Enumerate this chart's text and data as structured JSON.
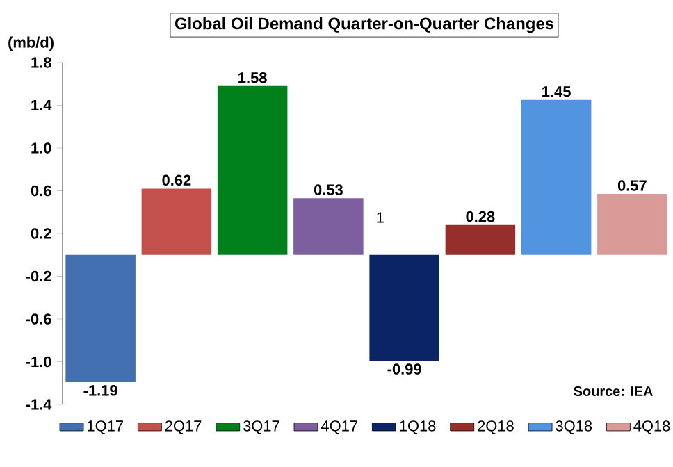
{
  "chart_data": {
    "type": "bar",
    "title": "Global Oil Demand Quarter-on-Quarter Changes",
    "ylabel": "(mb/d)",
    "categories": [
      null,
      null,
      null,
      null,
      null,
      null,
      null,
      null
    ],
    "series": [
      {
        "name": "1Q17",
        "color": "#416fb0",
        "values": [
          -1.19,
          null,
          null,
          null,
          null,
          null,
          null,
          null
        ],
        "value_labels": [
          "-1.19",
          null,
          null,
          null,
          null,
          null,
          null,
          null
        ]
      },
      {
        "name": "2Q17",
        "color": "#c4504c",
        "values": [
          null,
          0.62,
          null,
          null,
          null,
          null,
          null,
          null
        ],
        "value_labels": [
          null,
          "0.62",
          null,
          null,
          null,
          null,
          null,
          null
        ]
      },
      {
        "name": "3Q17",
        "color": "#00801a",
        "values": [
          null,
          null,
          1.58,
          null,
          null,
          null,
          null,
          null
        ],
        "value_labels": [
          null,
          null,
          "1.58",
          null,
          null,
          null,
          null,
          null
        ]
      },
      {
        "name": "4Q17",
        "color": "#7d5fa0",
        "values": [
          null,
          null,
          null,
          0.53,
          null,
          null,
          null,
          null
        ],
        "value_labels": [
          null,
          null,
          null,
          "0.53",
          null,
          null,
          null,
          null
        ]
      },
      {
        "name": "1Q18",
        "color": "#0b2466",
        "values": [
          null,
          null,
          null,
          null,
          -0.99,
          null,
          null,
          null
        ],
        "value_labels": [
          null,
          null,
          null,
          null,
          "-0.99",
          null,
          null,
          null
        ]
      },
      {
        "name": "2Q18",
        "color": "#962f2c",
        "values": [
          null,
          null,
          null,
          null,
          null,
          0.28,
          null,
          null
        ],
        "value_labels": [
          null,
          null,
          null,
          null,
          null,
          "0.28",
          null,
          null
        ]
      },
      {
        "name": "3Q18",
        "color": "#5195e0",
        "values": [
          null,
          null,
          null,
          null,
          null,
          null,
          1.45,
          null
        ],
        "value_labels": [
          null,
          null,
          null,
          null,
          null,
          null,
          "1.45",
          null
        ]
      },
      {
        "name": "4Q18",
        "color": "#d99a98",
        "values": [
          null,
          null,
          null,
          null,
          null,
          null,
          null,
          0.57
        ],
        "value_labels": [
          null,
          null,
          null,
          null,
          null,
          null,
          null,
          "0.57"
        ]
      }
    ],
    "ylim": [
      -1.4,
      1.8
    ],
    "yticks": [
      -1.4,
      {
        "value": -1.0,
        "label": "-1.0"
      },
      -0.6,
      -0.2,
      0.2,
      0.6,
      {
        "value": 1.0,
        "label": "1.0"
      },
      1.4,
      1.8
    ],
    "stacked": true,
    "tick_labels": "y",
    "legend": "bottom",
    "annotations": [
      "Source: IEA",
      "1"
    ]
  }
}
